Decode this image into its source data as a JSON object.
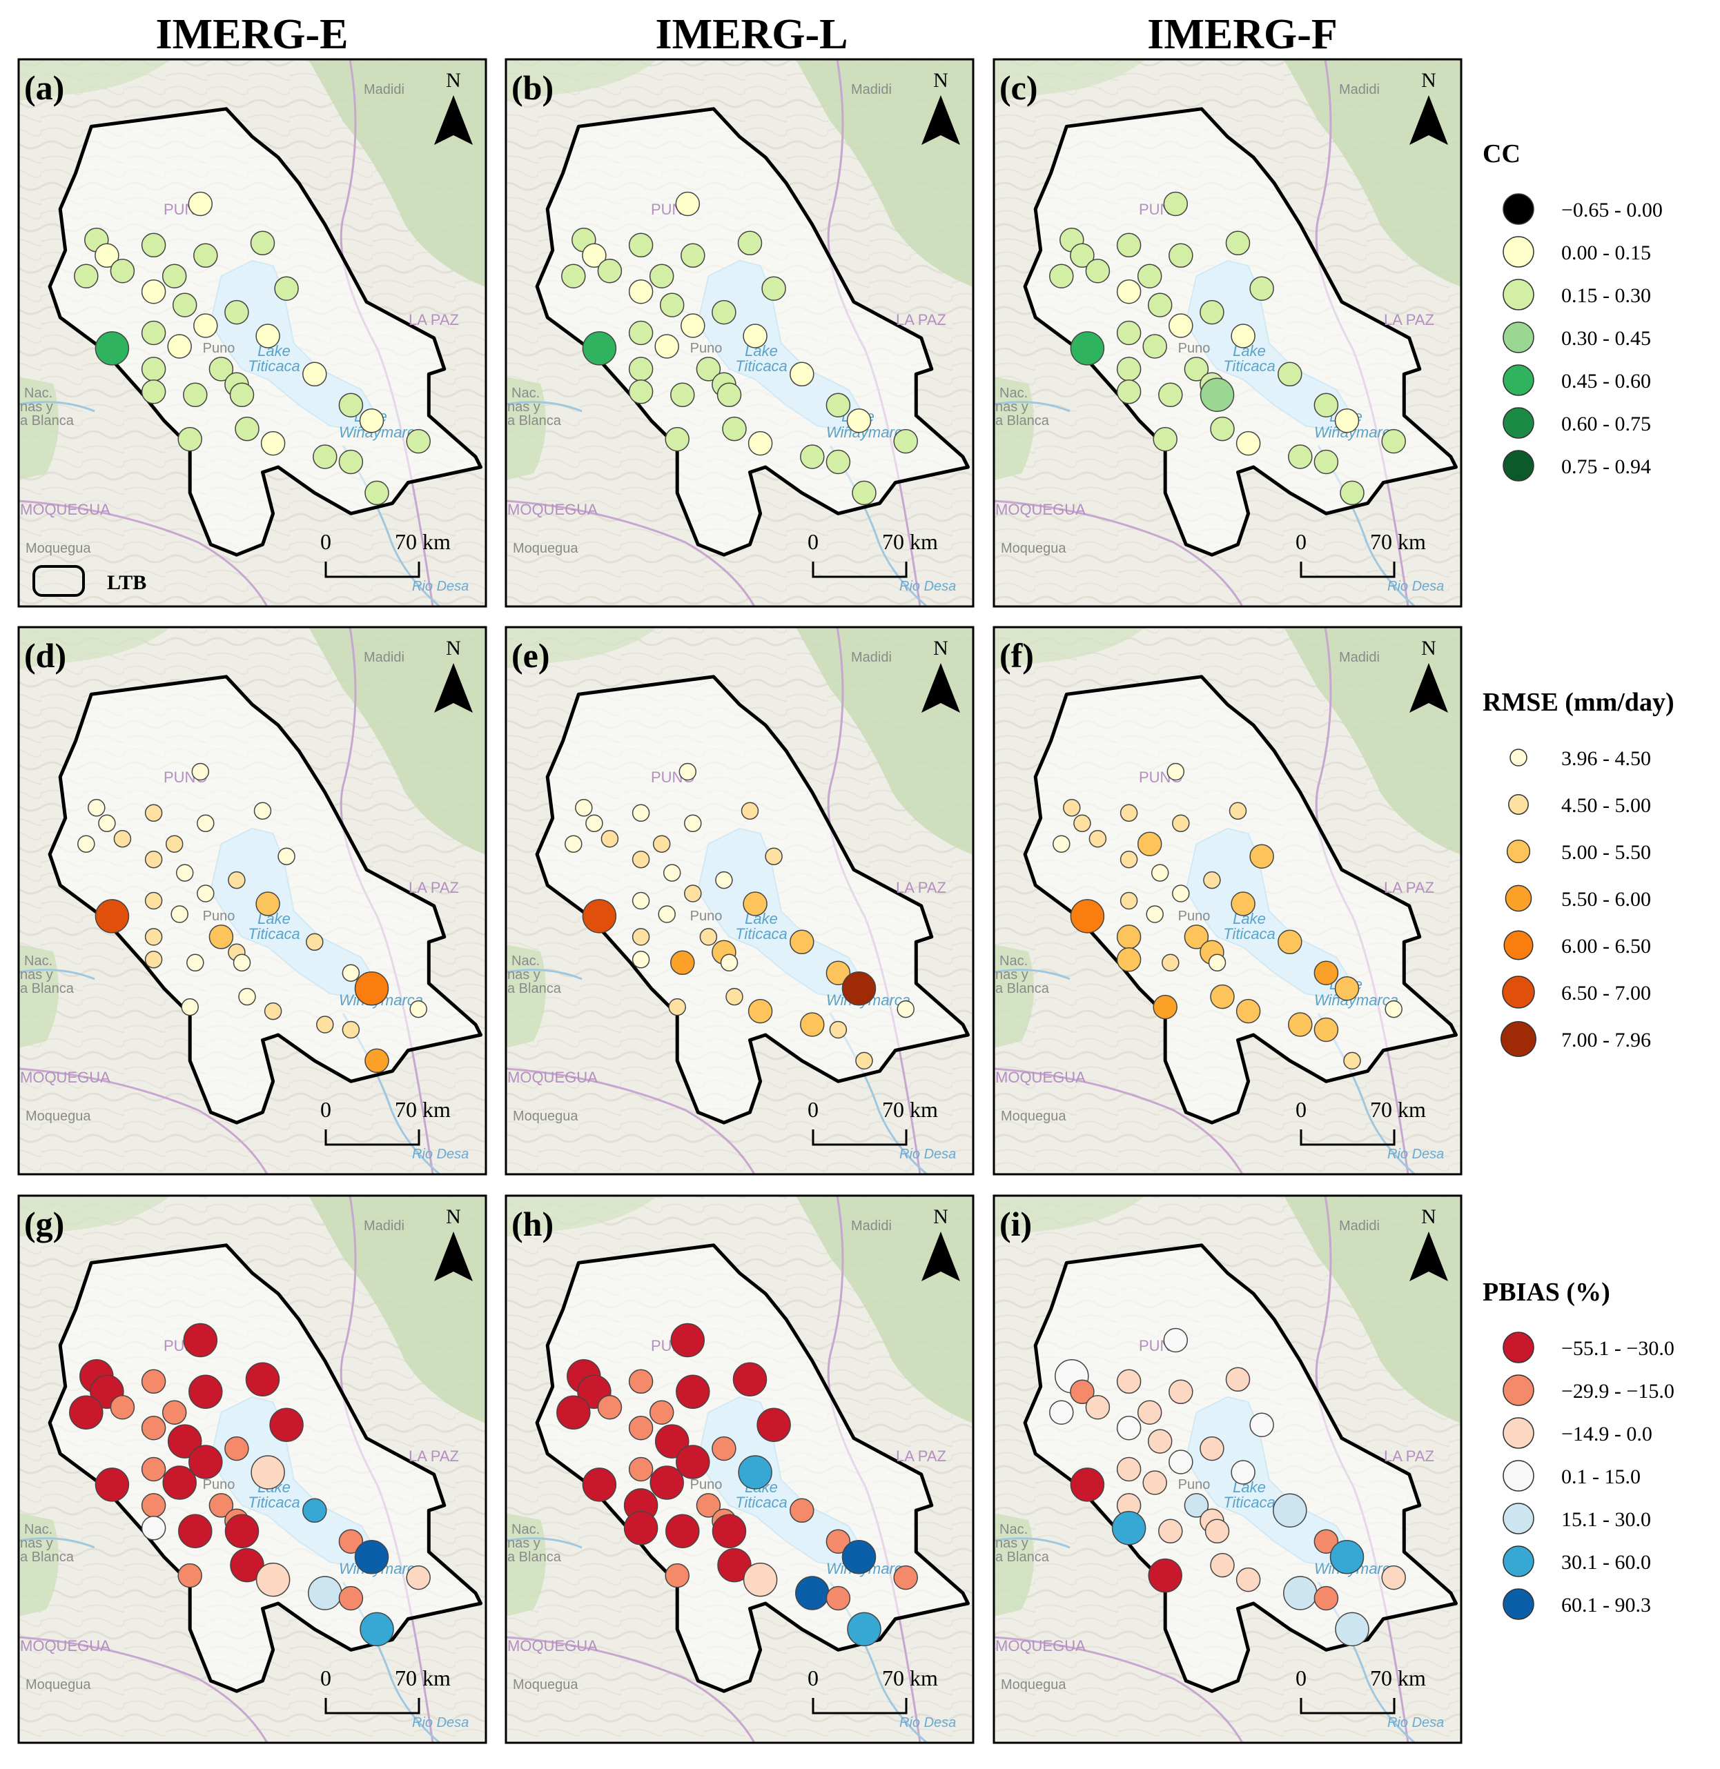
{
  "column_titles": [
    "IMERG-E",
    "IMERG-L",
    "IMERG-F"
  ],
  "panel_labels": [
    "(a)",
    "(b)",
    "(c)",
    "(d)",
    "(e)",
    "(f)",
    "(g)",
    "(h)",
    "(i)"
  ],
  "map_labels": {
    "madidi": "Madidi",
    "puno_region": "PUNO",
    "puno_city": "Puno",
    "la_paz": "LA PAZ",
    "lake_titicaca_1": "Lake",
    "lake_titicaca_2": "Titicaca",
    "lake_wiñaymarca_1": "Lake",
    "lake_wiñaymarca_2": "Wiñaymarca",
    "nac_1": "Nac.",
    "nac_2": "nas y",
    "nac_3": "a Blanca",
    "moquegua_region": "MOQUEGUA",
    "moquegua_city": "Moquegua",
    "rio": "Rio Desa"
  },
  "north_label": "N",
  "scale": {
    "zero": "0",
    "dist": "70 km"
  },
  "basin_legend_label": "LTB",
  "legends": [
    {
      "title": "CC",
      "items": [
        {
          "label": "−0.65 - 0.00",
          "color": "#000000"
        },
        {
          "label": "0.00 - 0.15",
          "color": "#ffffcc"
        },
        {
          "label": "0.15 - 0.30",
          "color": "#d2efa5"
        },
        {
          "label": "0.30 - 0.45",
          "color": "#9ad792"
        },
        {
          "label": "0.45 - 0.60",
          "color": "#2fb35f"
        },
        {
          "label": "0.60 - 0.75",
          "color": "#1b8a45"
        },
        {
          "label": "0.75 - 0.94",
          "color": "#0c5a2a"
        }
      ]
    },
    {
      "title": "RMSE (mm/day)",
      "items": [
        {
          "label": "3.96 - 4.50",
          "color": "#fffbd6"
        },
        {
          "label": "4.50 - 5.00",
          "color": "#fee0a0"
        },
        {
          "label": "5.00 - 5.50",
          "color": "#fdc45c"
        },
        {
          "label": "5.50 - 6.00",
          "color": "#fca127"
        },
        {
          "label": "6.00 - 6.50",
          "color": "#fa7d10"
        },
        {
          "label": "6.50 - 7.00",
          "color": "#e0500a"
        },
        {
          "label": "7.00 - 7.96",
          "color": "#9e2a06"
        }
      ]
    },
    {
      "title": "PBIAS (%)",
      "items": [
        {
          "label": "−55.1 - −30.0",
          "color": "#c9182c"
        },
        {
          "label": "−29.9 - −15.0",
          "color": "#f48a69"
        },
        {
          "label": "−14.9 - 0.0",
          "color": "#fcd7c1"
        },
        {
          "label": "0.1 - 15.0",
          "color": "#f8f8f8"
        },
        {
          "label": "15.1 - 30.0",
          "color": "#cde5f0"
        },
        {
          "label": "30.1 - 60.0",
          "color": "#37a8d4"
        },
        {
          "label": "60.1 - 90.3",
          "color": "#0b5ea8"
        }
      ]
    }
  ],
  "panel_classes": [
    [
      3,
      2,
      3,
      3,
      3,
      2,
      3,
      3,
      3,
      2,
      3,
      3,
      3,
      3,
      2,
      2,
      3,
      5,
      3,
      3,
      3,
      3,
      2,
      2,
      3,
      3,
      3,
      2,
      3,
      3,
      2,
      3,
      3,
      3
    ],
    [
      3,
      2,
      3,
      3,
      3,
      2,
      3,
      3,
      3,
      2,
      3,
      3,
      3,
      3,
      2,
      2,
      3,
      5,
      3,
      3,
      3,
      3,
      2,
      2,
      3,
      3,
      3,
      2,
      3,
      3,
      2,
      3,
      3,
      3
    ],
    [
      3,
      3,
      3,
      3,
      3,
      3,
      3,
      3,
      3,
      2,
      3,
      3,
      3,
      3,
      2,
      3,
      3,
      5,
      3,
      3,
      3,
      3,
      2,
      3,
      4,
      3,
      3,
      2,
      3,
      3,
      2,
      3,
      3,
      3
    ],
    [
      1,
      1,
      2,
      1,
      2,
      1,
      1,
      2,
      1,
      2,
      1,
      2,
      1,
      2,
      1,
      1,
      3,
      6,
      2,
      2,
      1,
      2,
      3,
      2,
      1,
      1,
      1,
      2,
      2,
      1,
      5,
      2,
      4,
      1
    ],
    [
      1,
      1,
      2,
      1,
      1,
      1,
      1,
      2,
      2,
      2,
      1,
      1,
      2,
      1,
      2,
      1,
      2,
      6,
      2,
      1,
      4,
      3,
      3,
      3,
      1,
      2,
      2,
      3,
      3,
      3,
      7,
      2,
      2,
      1
    ],
    [
      2,
      2,
      2,
      1,
      2,
      1,
      2,
      3,
      2,
      2,
      1,
      2,
      3,
      2,
      1,
      1,
      3,
      5,
      3,
      3,
      2,
      3,
      3,
      3,
      1,
      4,
      3,
      3,
      3,
      4,
      3,
      3,
      2,
      1
    ],
    [
      1,
      1,
      2,
      1,
      2,
      1,
      1,
      2,
      1,
      2,
      1,
      2,
      1,
      2,
      1,
      1,
      2,
      1,
      2,
      4,
      1,
      2,
      3,
      6,
      1,
      2,
      1,
      3,
      5,
      2,
      7,
      2,
      6,
      3
    ],
    [
      1,
      1,
      2,
      1,
      2,
      1,
      1,
      2,
      1,
      2,
      1,
      2,
      1,
      2,
      1,
      1,
      2,
      1,
      1,
      1,
      1,
      2,
      6,
      2,
      1,
      2,
      1,
      3,
      7,
      2,
      7,
      2,
      6,
      2
    ],
    [
      4,
      2,
      3,
      4,
      3,
      4,
      3,
      3,
      3,
      4,
      3,
      3,
      4,
      3,
      4,
      3,
      5,
      1,
      3,
      6,
      3,
      3,
      4,
      5,
      3,
      1,
      3,
      3,
      5,
      2,
      6,
      2,
      5,
      3
    ]
  ],
  "panel_sizes": [
    [
      2,
      2,
      2,
      2,
      2,
      2,
      2,
      2,
      2,
      2,
      2,
      2,
      2,
      2,
      2,
      2,
      2,
      3,
      2,
      2,
      2,
      2,
      2,
      2,
      2,
      2,
      2,
      2,
      2,
      2,
      2,
      2,
      2,
      2
    ],
    [
      2,
      2,
      2,
      2,
      2,
      2,
      2,
      2,
      2,
      2,
      2,
      2,
      2,
      2,
      2,
      2,
      2,
      3,
      2,
      2,
      2,
      2,
      2,
      2,
      2,
      2,
      2,
      2,
      2,
      2,
      2,
      2,
      2,
      2
    ],
    [
      2,
      2,
      2,
      2,
      2,
      2,
      2,
      2,
      2,
      2,
      2,
      2,
      2,
      2,
      2,
      2,
      2,
      3,
      2,
      2,
      2,
      2,
      2,
      2,
      3,
      2,
      2,
      2,
      2,
      2,
      2,
      2,
      2,
      2
    ],
    [
      1,
      1,
      1,
      1,
      1,
      1,
      1,
      1,
      1,
      1,
      1,
      1,
      1,
      1,
      1,
      1,
      2,
      3,
      1,
      1,
      1,
      1,
      2,
      1,
      1,
      1,
      1,
      1,
      1,
      1,
      3,
      1,
      2,
      1
    ],
    [
      1,
      1,
      1,
      1,
      1,
      1,
      1,
      1,
      1,
      1,
      1,
      1,
      1,
      1,
      1,
      1,
      1,
      3,
      1,
      1,
      2,
      2,
      2,
      2,
      1,
      1,
      1,
      2,
      2,
      2,
      3,
      1,
      1,
      1
    ],
    [
      1,
      1,
      1,
      1,
      1,
      1,
      1,
      2,
      1,
      1,
      1,
      1,
      2,
      1,
      1,
      1,
      2,
      3,
      2,
      2,
      1,
      2,
      2,
      2,
      1,
      2,
      2,
      2,
      2,
      2,
      2,
      2,
      1,
      1
    ],
    [
      3,
      3,
      2,
      3,
      2,
      3,
      3,
      2,
      3,
      2,
      3,
      2,
      3,
      2,
      3,
      3,
      2,
      3,
      2,
      2,
      3,
      2,
      3,
      2,
      3,
      2,
      3,
      3,
      3,
      2,
      3,
      2,
      3,
      2
    ],
    [
      3,
      3,
      2,
      3,
      2,
      3,
      3,
      2,
      3,
      2,
      3,
      2,
      3,
      2,
      3,
      3,
      2,
      3,
      3,
      3,
      3,
      2,
      3,
      2,
      3,
      2,
      3,
      3,
      3,
      2,
      3,
      2,
      3,
      2
    ],
    [
      3,
      2,
      2,
      2,
      2,
      2,
      2,
      2,
      2,
      2,
      2,
      2,
      2,
      2,
      2,
      2,
      2,
      3,
      2,
      3,
      2,
      2,
      2,
      3,
      2,
      3,
      2,
      2,
      3,
      2,
      3,
      2,
      3,
      2
    ]
  ]
}
